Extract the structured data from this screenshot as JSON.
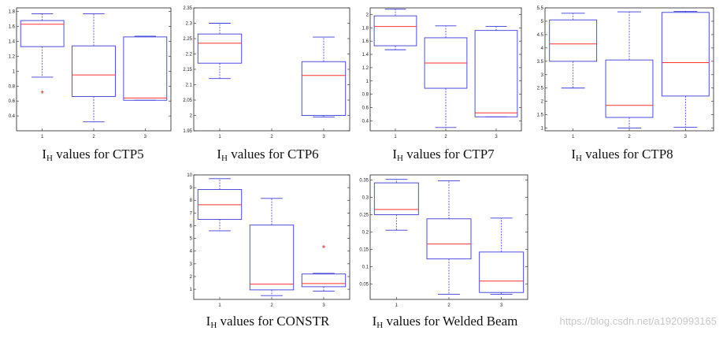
{
  "watermark": "https://blog.csdn.net/a1920993165",
  "colors": {
    "box": "#3b3bdb",
    "median": "#ff3030",
    "outlier": "#ff2020",
    "axis": "#222222"
  },
  "chart_data": [
    {
      "type": "boxplot",
      "caption_main": "I",
      "caption_sub": "H",
      "caption_rest": " values for CTP5",
      "categories": [
        "1",
        "2",
        "3"
      ],
      "ylim": [
        0.2,
        1.85
      ],
      "yticks": [
        0.4,
        0.6,
        0.8,
        1,
        1.2,
        1.4,
        1.6,
        1.8
      ],
      "ytick_labels": [
        "0.4",
        "0.6",
        "0.8",
        "1",
        "1.2",
        "1.4",
        "1.6",
        "1.8"
      ],
      "boxes": [
        {
          "min": 0.92,
          "q1": 1.33,
          "median": 1.63,
          "q3": 1.68,
          "max": 1.77,
          "outliers": [
            0.72
          ]
        },
        {
          "min": 0.32,
          "q1": 0.66,
          "median": 0.95,
          "q3": 1.34,
          "max": 1.77,
          "outliers": []
        },
        {
          "min": 0.61,
          "q1": 0.61,
          "median": 0.64,
          "q3": 1.46,
          "max": 1.47,
          "outliers": []
        }
      ]
    },
    {
      "type": "boxplot",
      "caption_main": "I",
      "caption_sub": "H",
      "caption_rest": " values for CTP6",
      "categories": [
        "1",
        "2",
        "3"
      ],
      "ylim": [
        1.95,
        2.35
      ],
      "yticks": [
        1.95,
        2,
        2.05,
        2.1,
        2.15,
        2.2,
        2.25,
        2.3,
        2.35
      ],
      "ytick_labels": [
        "1.95",
        "2",
        "2.05",
        "2.1",
        "2.15",
        "2.2",
        "2.25",
        "2.3",
        "2.35"
      ],
      "boxes": [
        {
          "min": 2.12,
          "q1": 2.17,
          "median": 2.235,
          "q3": 2.265,
          "max": 2.3,
          "outliers": []
        },
        null,
        {
          "min": 1.995,
          "q1": 2.0,
          "median": 2.13,
          "q3": 2.175,
          "max": 2.255,
          "outliers": []
        }
      ]
    },
    {
      "type": "boxplot",
      "caption_main": "I",
      "caption_sub": "H",
      "caption_rest": " values for CTP7",
      "categories": [
        "1",
        "2",
        "3"
      ],
      "ylim": [
        0.25,
        2.1
      ],
      "yticks": [
        0.4,
        0.6,
        0.8,
        1,
        1.2,
        1.4,
        1.6,
        1.8,
        2
      ],
      "ytick_labels": [
        "0.4",
        "0.6",
        "0.8",
        "1",
        "1.2",
        "1.4",
        "1.6",
        "1.8",
        "2"
      ],
      "boxes": [
        {
          "min": 1.47,
          "q1": 1.53,
          "median": 1.82,
          "q3": 1.98,
          "max": 2.08,
          "outliers": []
        },
        {
          "min": 0.3,
          "q1": 0.89,
          "median": 1.27,
          "q3": 1.65,
          "max": 1.83,
          "outliers": []
        },
        {
          "min": 0.46,
          "q1": 0.46,
          "median": 0.52,
          "q3": 1.76,
          "max": 1.82,
          "outliers": []
        }
      ]
    },
    {
      "type": "boxplot",
      "caption_main": "I",
      "caption_sub": "H",
      "caption_rest": " values for CTP8",
      "categories": [
        "1",
        "2",
        "3"
      ],
      "ylim": [
        0.9,
        5.5
      ],
      "yticks": [
        1,
        1.5,
        2,
        2.5,
        3,
        3.5,
        4,
        4.5,
        5,
        5.5
      ],
      "ytick_labels": [
        "1",
        "1.5",
        "2",
        "2.5",
        "3",
        "3.5",
        "4",
        "4.5",
        "5",
        "5.5"
      ],
      "boxes": [
        {
          "min": 2.5,
          "q1": 3.5,
          "median": 4.15,
          "q3": 5.05,
          "max": 5.3,
          "outliers": []
        },
        {
          "min": 1.0,
          "q1": 1.4,
          "median": 1.85,
          "q3": 3.55,
          "max": 5.35,
          "outliers": []
        },
        {
          "min": 1.03,
          "q1": 2.2,
          "median": 3.45,
          "q3": 5.33,
          "max": 5.37,
          "outliers": []
        }
      ]
    },
    {
      "type": "boxplot",
      "caption_main": "I",
      "caption_sub": "H",
      "caption_rest": " values for CONSTR",
      "categories": [
        "1",
        "2",
        "3"
      ],
      "ylim": [
        0.2,
        10
      ],
      "yticks": [
        1,
        2,
        3,
        4,
        5,
        6,
        7,
        8,
        9,
        10
      ],
      "ytick_labels": [
        "1",
        "2",
        "3",
        "4",
        "5",
        "6",
        "7",
        "8",
        "9",
        "10"
      ],
      "boxes": [
        {
          "min": 5.6,
          "q1": 6.5,
          "median": 7.65,
          "q3": 8.85,
          "max": 9.7,
          "outliers": []
        },
        {
          "min": 0.5,
          "q1": 0.95,
          "median": 1.4,
          "q3": 6.05,
          "max": 8.15,
          "outliers": []
        },
        {
          "min": 0.85,
          "q1": 1.2,
          "median": 1.45,
          "q3": 2.2,
          "max": 2.25,
          "outliers": [
            4.35
          ]
        }
      ]
    },
    {
      "type": "boxplot",
      "caption_main": "I",
      "caption_sub": "H",
      "caption_rest": " values for Welded Beam",
      "categories": [
        "1",
        "2",
        "3"
      ],
      "ylim": [
        0.005,
        0.365
      ],
      "yticks": [
        0.05,
        0.1,
        0.15,
        0.2,
        0.25,
        0.3,
        0.35
      ],
      "ytick_labels": [
        "0.05",
        "0.1",
        "0.15",
        "0.2",
        "0.25",
        "0.3",
        "0.35"
      ],
      "boxes": [
        {
          "min": 0.205,
          "q1": 0.25,
          "median": 0.265,
          "q3": 0.342,
          "max": 0.352,
          "outliers": []
        },
        {
          "min": 0.02,
          "q1": 0.122,
          "median": 0.165,
          "q3": 0.238,
          "max": 0.348,
          "outliers": []
        },
        {
          "min": 0.02,
          "q1": 0.025,
          "median": 0.058,
          "q3": 0.142,
          "max": 0.24,
          "outliers": []
        }
      ]
    }
  ]
}
